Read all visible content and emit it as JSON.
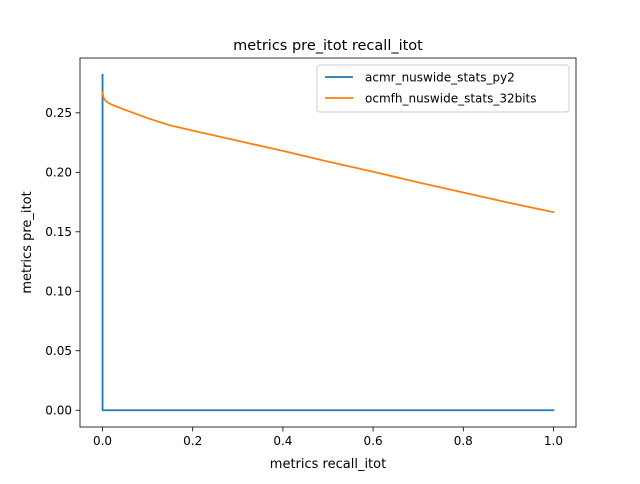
{
  "chart_data": {
    "type": "line",
    "title": "metrics pre_itot recall_itot",
    "xlabel": "metrics recall_itot",
    "ylabel": "metrics pre_itot",
    "xlim": [
      -0.05,
      1.05
    ],
    "ylim": [
      -0.0141,
      0.2961
    ],
    "xticks": [
      0.0,
      0.2,
      0.4,
      0.6,
      0.8,
      1.0
    ],
    "xtick_labels": [
      "0.0",
      "0.2",
      "0.4",
      "0.6",
      "0.8",
      "1.0"
    ],
    "yticks": [
      0.0,
      0.05,
      0.1,
      0.15,
      0.2,
      0.25
    ],
    "ytick_labels": [
      "0.00",
      "0.05",
      "0.10",
      "0.15",
      "0.20",
      "0.25"
    ],
    "grid": false,
    "legend_position": "upper right",
    "series": [
      {
        "name": "acmr_nuswide_stats_py2",
        "color": "#1f77b4",
        "points": [
          [
            0.0,
            0.282
          ],
          [
            0.0,
            0.0
          ],
          [
            1.0,
            0.0
          ]
        ]
      },
      {
        "name": "ocmfh_nuswide_stats_32bits",
        "color": "#ff7f0e",
        "points": [
          [
            0.0,
            0.267
          ],
          [
            0.002,
            0.263
          ],
          [
            0.005,
            0.261
          ],
          [
            0.01,
            0.259
          ],
          [
            0.02,
            0.257
          ],
          [
            0.05,
            0.2525
          ],
          [
            0.1,
            0.2455
          ],
          [
            0.15,
            0.2395
          ],
          [
            0.2,
            0.235
          ],
          [
            0.3,
            0.2265
          ],
          [
            0.4,
            0.218
          ],
          [
            0.5,
            0.209
          ],
          [
            0.6,
            0.2005
          ],
          [
            0.7,
            0.1915
          ],
          [
            0.8,
            0.183
          ],
          [
            0.9,
            0.1745
          ],
          [
            1.0,
            0.1665
          ]
        ]
      }
    ]
  }
}
